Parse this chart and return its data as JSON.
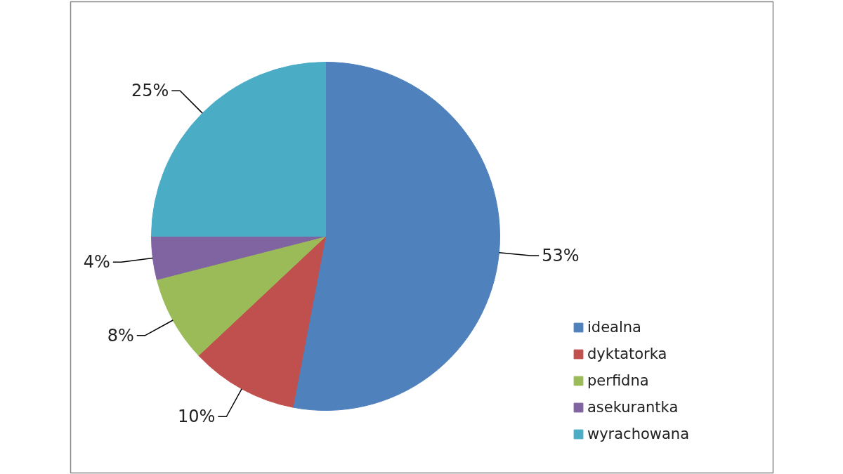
{
  "chart_data": {
    "type": "pie",
    "categories": [
      "idealna",
      "dyktatorka",
      "perfidna",
      "asekurantka",
      "wyrachowana"
    ],
    "values": [
      53,
      10,
      8,
      4,
      25
    ],
    "value_labels": [
      "53%",
      "10%",
      "8%",
      "4%",
      "25%"
    ],
    "colors": [
      "#4f81bd",
      "#c0504d",
      "#9bbb59",
      "#8064a2",
      "#4bacc6"
    ],
    "legend": "right"
  }
}
